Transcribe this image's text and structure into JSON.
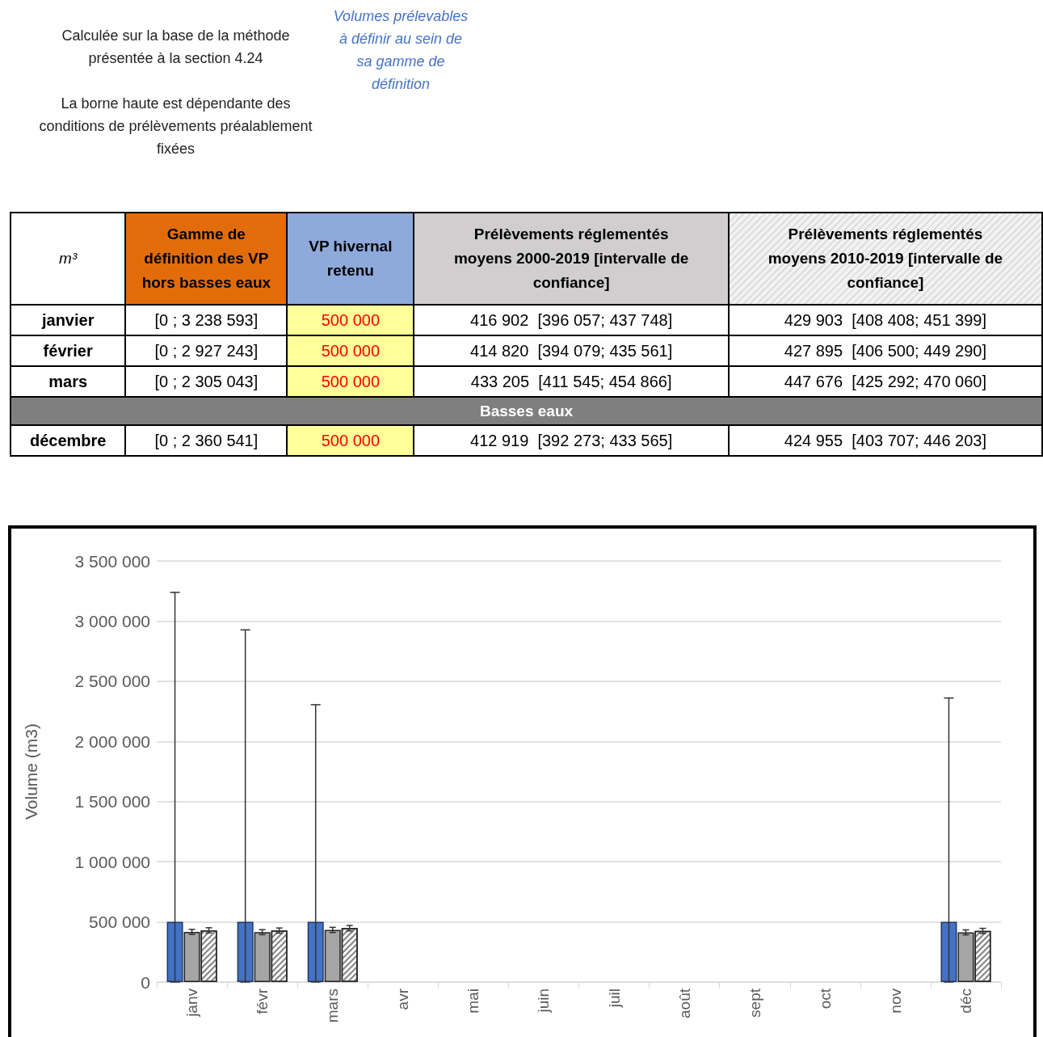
{
  "chart_data": {
    "type": "bar",
    "ylabel": "Volume (m3)",
    "categories": [
      "janv",
      "févr",
      "mars",
      "avr",
      "mai",
      "juin",
      "juil",
      "août",
      "sept",
      "oct",
      "nov",
      "déc"
    ],
    "series": [
      {
        "color": "#4472c4",
        "values": [
          500000,
          500000,
          500000,
          null,
          null,
          null,
          null,
          null,
          null,
          null,
          null,
          500000
        ],
        "errors": [
          [
            0,
            3238593
          ],
          [
            0,
            2927243
          ],
          [
            0,
            2305043
          ],
          null,
          null,
          null,
          null,
          null,
          null,
          null,
          null,
          [
            0,
            2360541
          ]
        ]
      },
      {
        "color": "#a5a5a5",
        "values": [
          416902,
          414820,
          433205,
          null,
          null,
          null,
          null,
          null,
          null,
          null,
          null,
          412919
        ],
        "errors": [
          [
            396057,
            437748
          ],
          [
            394079,
            435561
          ],
          [
            411545,
            454866
          ],
          null,
          null,
          null,
          null,
          null,
          null,
          null,
          null,
          [
            392273,
            433565
          ]
        ]
      },
      {
        "color": "#ffffff",
        "values": [
          429903,
          427895,
          447676,
          null,
          null,
          null,
          null,
          null,
          null,
          null,
          null,
          424955
        ],
        "errors": [
          [
            408408,
            451399
          ],
          [
            406500,
            449290
          ],
          [
            425292,
            470060
          ],
          null,
          null,
          null,
          null,
          null,
          null,
          null,
          null,
          [
            403707,
            446203
          ]
        ]
      }
    ],
    "ylim": [
      0,
      3500000
    ],
    "yticks": [
      0,
      {
        "value": 500000,
        "label": "500 000"
      },
      {
        "value": 1000000,
        "label": "1 000 000"
      },
      {
        "value": 1500000,
        "label": "1 500 000"
      },
      {
        "value": 2000000,
        "label": "2 000 000"
      },
      {
        "value": 2500000,
        "label": "2 500 000"
      },
      {
        "value": 3000000,
        "label": "3 000 000"
      },
      {
        "value": 3500000,
        "label": "3 500 000"
      }
    ],
    "grid": "y",
    "annotations": [
      "Calculée sur la base de la méthode présentée à la section 4.24",
      "La borne haute est dépendante des conditions de prélèvements préalablement fixées",
      "Volumes prélevables à définir au sein de sa gamme de définition",
      "m³",
      "Gamme de définition des VP hors basses eaux",
      "VP hivernal retenu",
      "Prélèvements réglementés moyens 2000-2019 [intervalle de confiance]",
      "Prélèvements réglementés moyens 2010-2019 [intervalle de confiance]",
      "Basses eaux",
      "janvier",
      "[0 ; 3 238 593]",
      "500 000",
      "416 902  [396 057; 437 748]",
      "429 903  [408 408; 451 399]",
      "février",
      "[0 ; 2 927 243]",
      "500 000",
      "414 820  [394 079; 435 561]",
      "427 895  [406 500; 449 290]",
      "mars",
      "[0 ; 2 305 043]",
      "500 000",
      "433 205  [411 545; 454 866]",
      "447 676  [425 292; 470 060]",
      "décembre",
      "[0 ; 2 360 541]",
      "500 000",
      "412 919  [392 273; 433 565]",
      "424 955  [403 707; 446 203]"
    ]
  }
}
